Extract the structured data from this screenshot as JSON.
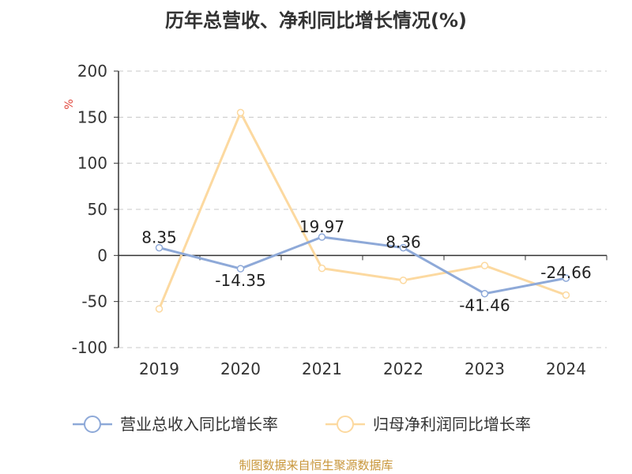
{
  "title": "历年总营收、净利同比增长情况(%)",
  "source": "制图数据来自恒生聚源数据库",
  "colors": {
    "revenue": "#8ea9d8",
    "profit": "#fcd9a0",
    "axis": "#333333",
    "grid": "#c8c8c8",
    "unit": "#e0453a",
    "source": "#c8963a"
  },
  "chart_data": {
    "type": "line",
    "title": "历年总营收、净利同比增长情况(%)",
    "xlabel": "",
    "ylabel": "%",
    "categories": [
      "2019",
      "2020",
      "2021",
      "2022",
      "2023",
      "2024"
    ],
    "ylim": [
      -100,
      200
    ],
    "yticks": [
      200,
      150,
      100,
      50,
      0,
      -50,
      -100
    ],
    "grid": true,
    "legend_position": "bottom",
    "series": [
      {
        "name": "营业总收入同比增长率",
        "color": "#8ea9d8",
        "values": [
          8.35,
          -14.35,
          19.97,
          8.36,
          -41.46,
          -24.66
        ],
        "labels": [
          "8.35",
          "-14.35",
          "19.97",
          "8.36",
          "-41.46",
          "-24.66"
        ]
      },
      {
        "name": "归母净利润同比增长率",
        "color": "#fcd9a0",
        "values": [
          -58,
          155,
          -14,
          -27,
          -11,
          -43
        ]
      }
    ]
  }
}
